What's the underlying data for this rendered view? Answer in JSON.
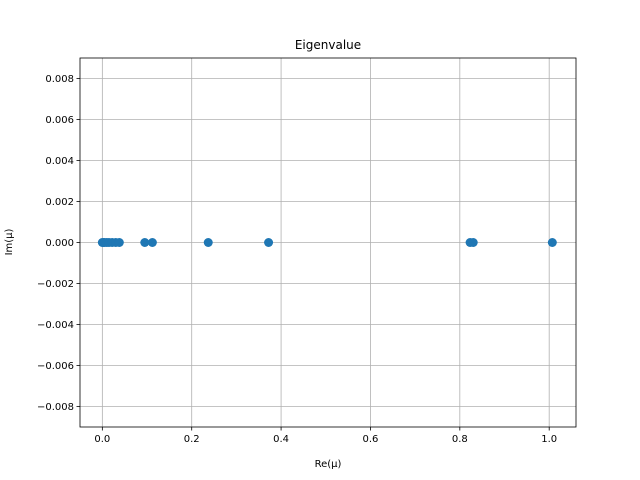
{
  "chart_data": {
    "type": "scatter",
    "title": "Eigenvalue",
    "xlabel": "Re(μ)",
    "ylabel": "Im(μ)",
    "xlim": [
      -0.05,
      1.06
    ],
    "ylim": [
      -0.009,
      0.009
    ],
    "xticks": [
      0.0,
      0.2,
      0.4,
      0.6,
      0.8,
      1.0
    ],
    "xtick_labels": [
      "0.0",
      "0.2",
      "0.4",
      "0.6",
      "0.8",
      "1.0"
    ],
    "yticks": [
      -0.008,
      -0.006,
      -0.004,
      -0.002,
      0.0,
      0.002,
      0.004,
      0.006,
      0.008
    ],
    "ytick_labels": [
      "−0.008",
      "−0.006",
      "−0.004",
      "−0.002",
      "0.000",
      "0.002",
      "0.004",
      "0.006",
      "0.008"
    ],
    "grid": true,
    "color": "#1f77b4",
    "points": [
      {
        "x": 0.0,
        "y": 0.0
      },
      {
        "x": 0.002,
        "y": 0.0
      },
      {
        "x": 0.005,
        "y": 0.0
      },
      {
        "x": 0.01,
        "y": 0.0
      },
      {
        "x": 0.015,
        "y": 0.0
      },
      {
        "x": 0.022,
        "y": 0.0
      },
      {
        "x": 0.03,
        "y": 0.0
      },
      {
        "x": 0.038,
        "y": 0.0
      },
      {
        "x": 0.095,
        "y": 0.0
      },
      {
        "x": 0.112,
        "y": 0.0
      },
      {
        "x": 0.237,
        "y": 0.0
      },
      {
        "x": 0.372,
        "y": 0.0
      },
      {
        "x": 0.823,
        "y": 0.0
      },
      {
        "x": 0.83,
        "y": 0.0
      },
      {
        "x": 1.007,
        "y": 0.0
      }
    ]
  }
}
